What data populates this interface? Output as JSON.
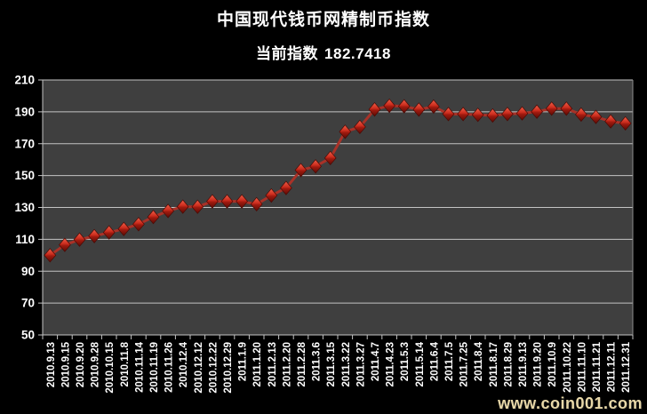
{
  "header": {
    "title": "中国现代钱币网精制币指数",
    "subtitle_label": "当前指数",
    "current_index": "182.7418"
  },
  "watermark": "www.coin001.com",
  "chart_data": {
    "type": "line",
    "title": "中国现代钱币网精制币指数",
    "subtitle": "当前指数 182.7418",
    "categories": [
      "2010.9.13",
      "2010.9.15",
      "2010.9.20",
      "2010.9.28",
      "2010.10.15",
      "2010.11.8",
      "2010.11.14",
      "2010.11.19",
      "2010.11.26",
      "2010.12.4",
      "2010.12.12",
      "2010.12.22",
      "2010.12.29",
      "2011.1.9",
      "2011.1.20",
      "2011.2.13",
      "2011.2.20",
      "2011.2.28",
      "2011.3.6",
      "2011.3.15",
      "2011.3.22",
      "2011.3.27",
      "2011.4.7",
      "2011.4.23",
      "2011.5.3",
      "2011.5.14",
      "2011.6.4",
      "2011.7.5",
      "2011.7.25",
      "2011.8.4",
      "2011.8.17",
      "2011.8.29",
      "2011.9.13",
      "2011.9.20",
      "2011.10.9",
      "2011.10.22",
      "2011.11.10",
      "2011.11.21",
      "2011.12.11",
      "2011.12.31"
    ],
    "values": [
      100.0,
      106.5,
      109.8,
      112.0,
      114.3,
      116.5,
      119.5,
      124.0,
      127.8,
      130.5,
      130.4,
      133.8,
      133.8,
      133.8,
      132.0,
      137.5,
      142.2,
      153.4,
      155.8,
      161.0,
      177.5,
      180.5,
      191.5,
      193.8,
      193.5,
      191.4,
      193.3,
      188.6,
      188.6,
      188.1,
      187.7,
      188.6,
      189.0,
      190.1,
      192.0,
      192.0,
      188.3,
      186.8,
      184.0,
      182.7418
    ],
    "ylim": [
      50,
      210
    ],
    "yticks": [
      210,
      190,
      170,
      150,
      130,
      110,
      90,
      70,
      50
    ],
    "xlabel": "",
    "ylabel": "",
    "grid": true,
    "legend": "none",
    "marker": "diamond-3d",
    "colors": {
      "background": "#000000",
      "plot_bg": "#3f3f3f",
      "gridline": "#c4c4c4",
      "line": "#a93228",
      "marker_top": "#ea5440",
      "marker_mid": "#c7291b",
      "marker_bottom": "#5f0d07",
      "text": "#ffffff",
      "watermark": "#e8d8a8"
    }
  }
}
